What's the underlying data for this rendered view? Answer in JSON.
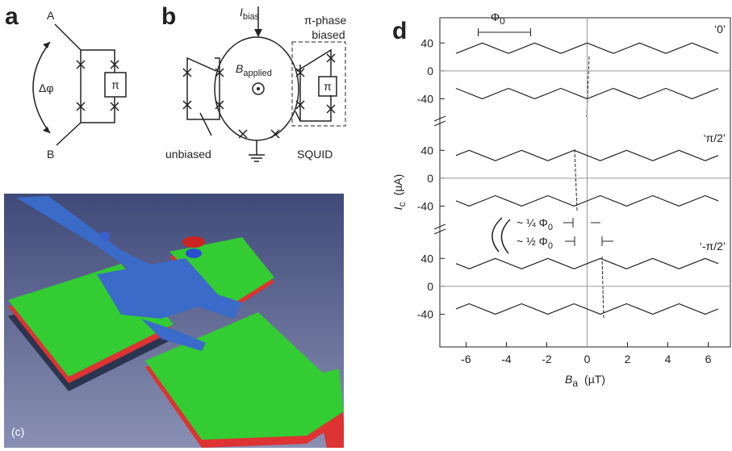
{
  "panel_a": {
    "letter": "a",
    "node_a": "A",
    "node_b": "B",
    "phase": "Δφ",
    "pi": "π"
  },
  "panel_b": {
    "letter": "b",
    "bias_symbol": "I",
    "bias_sub": "bias",
    "pi_label_1": "π-phase",
    "pi_label_2": "biased",
    "field_symbol": "B",
    "field_sub": "applied",
    "pi": "π",
    "unbiased": "unbiased",
    "squid": "SQUID"
  },
  "panel_c": {
    "label": "(c)"
  },
  "panel_d": {
    "letter": "d",
    "xlabel": {
      "symbol": "B",
      "sub": "a",
      "unit": "(µT)"
    },
    "ylabel": {
      "symbol": "I",
      "sub": "c",
      "unit": "(µA)"
    },
    "xlim": [
      -7.3,
      7.1
    ],
    "xticks": [
      -6,
      -4,
      -2,
      0,
      2,
      4,
      6
    ],
    "ylim": [
      -80,
      75
    ],
    "yticks": [
      40,
      0,
      -40
    ],
    "flux_bar": {
      "symbol": "Φ",
      "sub": "0",
      "x": [
        -5.4,
        -2.8
      ]
    },
    "quarter": {
      "prefix": "~ ¼ ",
      "symbol": "Φ",
      "sub": "0"
    },
    "half": {
      "prefix": "~ ½ ",
      "symbol": "Φ",
      "sub": "0"
    },
    "subplots": [
      {
        "label": "‘0’",
        "x": [
          -6.5,
          -5.2,
          -3.9,
          -2.6,
          -1.3,
          0,
          1.3,
          2.6,
          3.9,
          5.2,
          6.5
        ],
        "upper": [
          25,
          40,
          25,
          40,
          25,
          40,
          25,
          40,
          25,
          40,
          25
        ],
        "lower": [
          -25,
          -40,
          -25,
          -40,
          -25,
          -40,
          -25,
          -40,
          -25,
          -40,
          -25
        ]
      },
      {
        "label": "‘π/2’",
        "x": [
          -6.5,
          -5.85,
          -4.55,
          -3.25,
          -1.95,
          -0.65,
          0.65,
          1.95,
          3.25,
          4.55,
          5.85,
          6.5
        ],
        "upper": [
          32.5,
          40,
          25,
          40,
          25,
          40,
          25,
          40,
          25,
          40,
          25,
          32.5
        ],
        "lower": [
          -32.5,
          -40,
          -25,
          -40,
          -25,
          -40,
          -25,
          -40,
          -25,
          -40,
          -25,
          -32.5
        ]
      },
      {
        "label": "‘-π/2’",
        "x": [
          -6.5,
          -5.85,
          -4.55,
          -3.25,
          -1.95,
          -0.65,
          0.65,
          1.95,
          3.25,
          4.55,
          5.85,
          6.5
        ],
        "upper": [
          32.5,
          25,
          40,
          25,
          40,
          25,
          40,
          25,
          40,
          25,
          40,
          32.5
        ],
        "lower": [
          -32.5,
          -25,
          -40,
          -25,
          -40,
          -25,
          -40,
          -25,
          -40,
          -25,
          -40,
          -32.5
        ]
      }
    ]
  }
}
